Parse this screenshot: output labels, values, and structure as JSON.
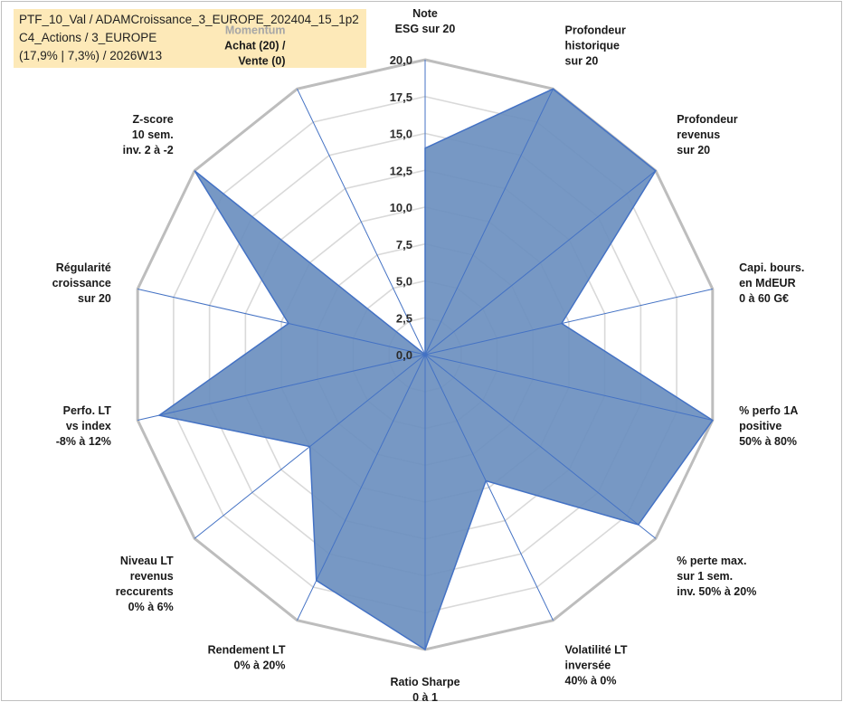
{
  "info": {
    "line1": "PTF_10_Val / ADAMCroissance_3_EUROPE_202404_15_1p2",
    "line2": "C4_Actions / 3_EUROPE",
    "line3": "(17,9% | 7,3%) / 2026W13"
  },
  "chart_data": {
    "type": "radar",
    "rmin": 0,
    "rmax": 20,
    "ticks": [
      "0,0",
      "2,5",
      "5,0",
      "7,5",
      "10,0",
      "12,5",
      "15,0",
      "17,5",
      "20,0"
    ],
    "grid": true,
    "grid_style": "polygon",
    "categories": [
      {
        "lines": [
          "Note",
          "ESG sur 20"
        ]
      },
      {
        "lines": [
          "Profondeur",
          "historique",
          "sur 20"
        ]
      },
      {
        "lines": [
          "Profondeur",
          "revenus",
          "sur 20"
        ]
      },
      {
        "lines": [
          "Capi. bours.",
          "en MdEUR",
          "0 à 60 G€"
        ]
      },
      {
        "lines": [
          "% perfo 1A",
          "positive",
          "50% à 80%"
        ]
      },
      {
        "lines": [
          "% perte max.",
          "sur 1 sem.",
          "inv. 50% à 20%"
        ]
      },
      {
        "lines": [
          "Volatilité LT",
          "inversée",
          "40% à 0%"
        ]
      },
      {
        "lines": [
          "Ratio Sharpe",
          "0 à 1"
        ]
      },
      {
        "lines": [
          "Rendement LT",
          "0% à 20%"
        ]
      },
      {
        "lines": [
          "Niveau LT",
          "revenus",
          "reccurents",
          "0% à 6%"
        ]
      },
      {
        "lines": [
          "Perfo. LT",
          "vs index",
          "-8% à 12%"
        ]
      },
      {
        "lines": [
          "Régularité",
          "croissance",
          "sur 20"
        ]
      },
      {
        "lines": [
          "Z-score",
          "10 sem.",
          "inv. 2 à -2"
        ]
      },
      {
        "lines": [
          "Momentum",
          "Achat (20) /",
          "Vente (0)"
        ],
        "muted_first_line": true
      }
    ],
    "values": [
      14.0,
      20.0,
      20.0,
      9.5,
      20.0,
      18.5,
      9.5,
      20.0,
      17.0,
      10.0,
      18.5,
      9.5,
      20.0,
      0.0
    ],
    "series_color": "#6b8fbf",
    "series_stroke": "#4472c4"
  }
}
